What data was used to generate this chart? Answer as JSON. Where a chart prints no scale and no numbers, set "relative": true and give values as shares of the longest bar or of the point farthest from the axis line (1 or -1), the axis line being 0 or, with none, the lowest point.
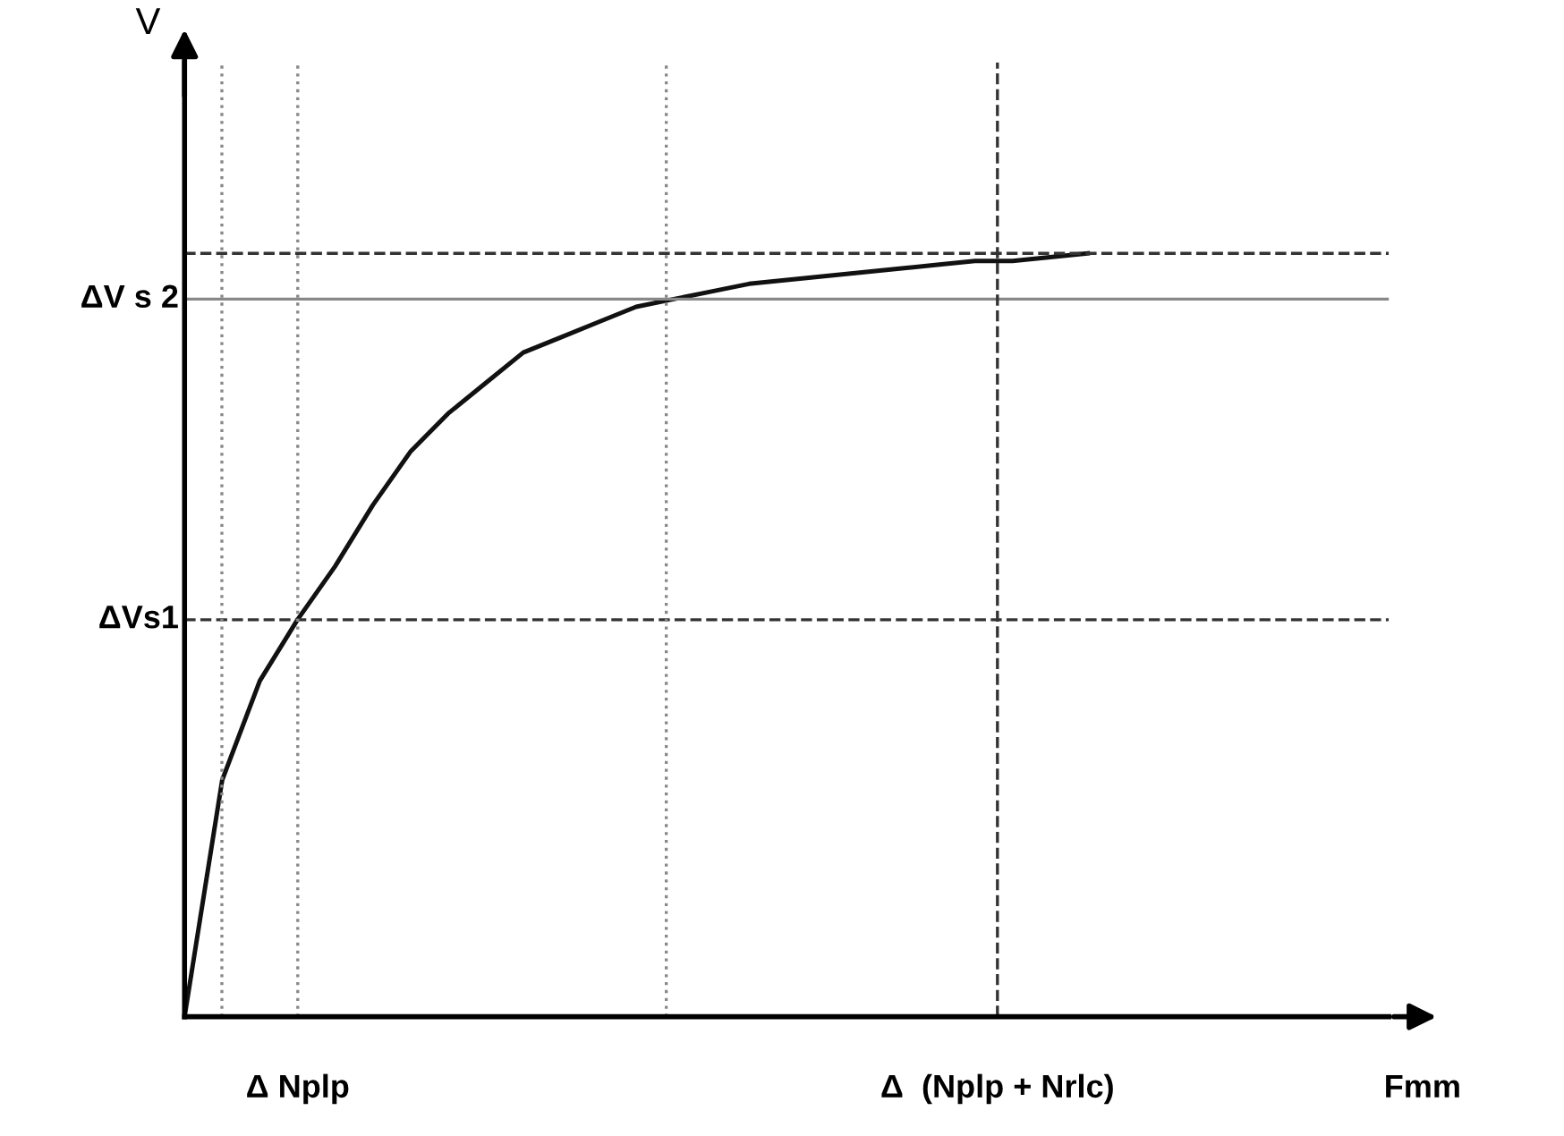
{
  "chart_data": {
    "type": "line",
    "relative": true,
    "xlabel": "Fmm",
    "color": "#111111",
    "line_style": "solid",
    "marker": "none",
    "grid": false,
    "annotations": [
      "Δ Nplp",
      "Δ  (Nplp + Nrlc)",
      "V"
    ],
    "categories": [
      null,
      null,
      null,
      null,
      null,
      null,
      null,
      null,
      null,
      null,
      null,
      null,
      null,
      null,
      null,
      null,
      null,
      null,
      null,
      null,
      null,
      null,
      null,
      null,
      null,
      null,
      null,
      null,
      null,
      null,
      null,
      null,
      null
    ],
    "values": [
      0,
      0.31,
      0.44,
      0.52,
      0.59,
      0.67,
      0.74,
      0.79,
      0.83,
      0.87,
      0.89,
      0.91,
      0.93,
      0.94,
      0.95,
      0.96,
      0.965,
      0.97,
      0.975,
      0.98,
      0.985,
      0.99,
      0.99,
      0.995,
      1.0,
      null,
      null,
      null,
      null,
      null,
      null,
      null,
      null
    ],
    "ref_lines": [
      {
        "axis": "y",
        "value": 0.52,
        "label": "ΔVs1",
        "line_style": "dashed",
        "color": "#333333"
      },
      {
        "axis": "y",
        "value": 0.94,
        "label": "ΔV s 2",
        "line_style": "solid",
        "color": "#888888"
      },
      {
        "axis": "y",
        "value": 1.0,
        "label": null,
        "line_style": "dashed",
        "color": "#333333"
      }
    ]
  }
}
